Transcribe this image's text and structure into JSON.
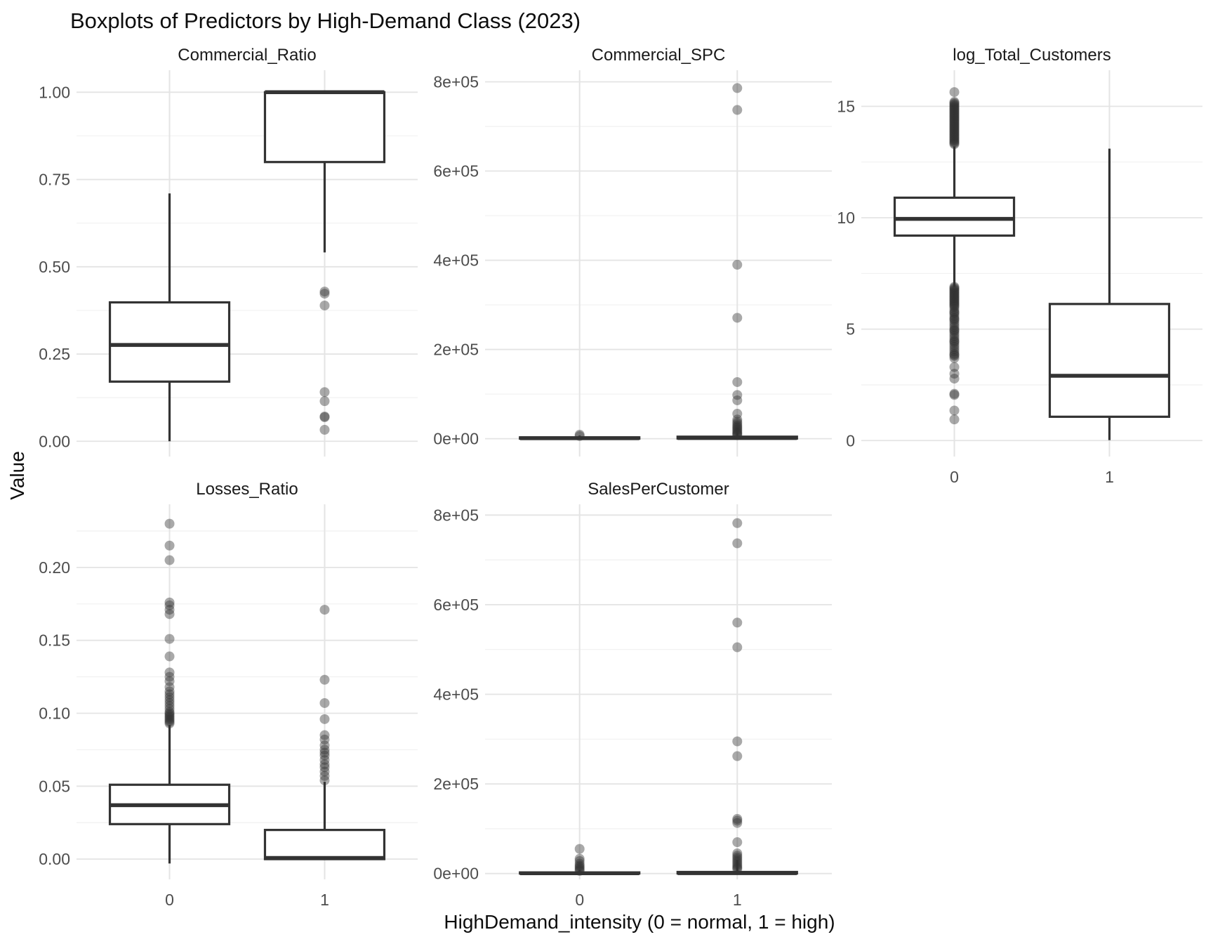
{
  "title": "Boxplots of Predictors by High-Demand Class (2023)",
  "x_axis_title": "HighDemand_intensity (0 = normal, 1 = high)",
  "y_axis_title": "Value",
  "colors": {
    "background": "#ffffff",
    "box_stroke": "#333333",
    "outlier": "#333333",
    "grid_major": "#e4e4e4",
    "grid_minor": "#f1f1f1",
    "tick_text": "#4d4d4d",
    "strip_text": "#1a1a1a"
  },
  "chart_data": {
    "type": "boxplot",
    "facet_layout": {
      "rows": 2,
      "cols": 3,
      "empty_cells": [
        [
          1,
          2
        ]
      ]
    },
    "x_categories": [
      "0",
      "1"
    ],
    "grid": "major+minor, no panel border, white background",
    "facets": [
      {
        "name": "Commercial_Ratio",
        "row": 0,
        "col": 0,
        "show_x_labels": false,
        "ylim": [
          -0.0437,
          1.063
        ],
        "major_step": 0.25,
        "yticks": [
          {
            "v": 1.0,
            "label": "1.00"
          },
          {
            "v": 0.75,
            "label": "0.75"
          },
          {
            "v": 0.5,
            "label": "0.50"
          },
          {
            "v": 0.25,
            "label": "0.25"
          },
          {
            "v": 0.0,
            "label": "0.00"
          }
        ],
        "groups": [
          {
            "category": "0",
            "whisker_low": 0.0,
            "q1": 0.171,
            "median": 0.276,
            "q3": 0.398,
            "whisker_high": 0.71,
            "outliers": []
          },
          {
            "category": "1",
            "whisker_low": 0.541,
            "q1": 0.8,
            "median": 1.0,
            "q3": 1.0,
            "whisker_high": 1.0,
            "outliers": [
              0.429,
              0.423,
              0.389,
              0.141,
              0.115,
              0.071,
              0.069,
              0.033
            ]
          }
        ]
      },
      {
        "name": "Commercial_SPC",
        "row": 0,
        "col": 1,
        "show_x_labels": false,
        "ylim": [
          -40000,
          826000
        ],
        "major_step": 200000,
        "yticks": [
          {
            "v": 800000,
            "label": "8e+05"
          },
          {
            "v": 600000,
            "label": "6e+05"
          },
          {
            "v": 400000,
            "label": "4e+05"
          },
          {
            "v": 200000,
            "label": "2e+05"
          },
          {
            "v": 0,
            "label": "0e+00"
          }
        ],
        "groups": [
          {
            "category": "0",
            "whisker_low": 0,
            "q1": 300,
            "median": 1200,
            "q3": 3000,
            "whisker_high": 7000,
            "outliers": [
              9000,
              6000
            ]
          },
          {
            "category": "1",
            "whisker_low": 0,
            "q1": 500,
            "median": 1500,
            "q3": 4500,
            "whisker_high": 25000,
            "outliers": [
              786000,
              737000,
              390000,
              271000,
              127000,
              98000,
              86000,
              56000,
              43000,
              38000,
              34000,
              30000,
              27000,
              24000,
              21000,
              18000,
              15000,
              12000,
              10000,
              8000
            ]
          }
        ]
      },
      {
        "name": "log_Total_Customers",
        "row": 0,
        "col": 2,
        "show_x_labels": true,
        "ylim": [
          -0.716,
          16.62
        ],
        "major_step": 5,
        "yticks": [
          {
            "v": 15,
            "label": "15"
          },
          {
            "v": 10,
            "label": "10"
          },
          {
            "v": 5,
            "label": "5"
          },
          {
            "v": 0,
            "label": "0"
          }
        ],
        "groups": [
          {
            "category": "0",
            "whisker_low": 6.9,
            "q1": 9.2,
            "median": 9.95,
            "q3": 10.9,
            "whisker_high": 13.2,
            "outliers": [
              15.64,
              15.2,
              15.15,
              15.1,
              15.05,
              15.0,
              14.95,
              14.9,
              14.85,
              14.8,
              14.75,
              14.7,
              14.65,
              14.6,
              14.55,
              14.5,
              14.45,
              14.4,
              14.35,
              14.3,
              14.25,
              14.2,
              14.15,
              14.1,
              14.05,
              14.0,
              13.95,
              13.9,
              13.85,
              13.8,
              13.75,
              13.7,
              13.65,
              13.6,
              13.55,
              13.5,
              13.45,
              13.4,
              13.35,
              13.3,
              6.9,
              6.85,
              6.8,
              6.75,
              6.7,
              6.65,
              6.6,
              6.55,
              6.5,
              6.45,
              6.4,
              6.35,
              6.3,
              6.25,
              6.2,
              6.15,
              6.1,
              6.05,
              6.0,
              5.9,
              5.8,
              5.75,
              5.7,
              5.6,
              5.5,
              5.45,
              5.4,
              5.3,
              5.2,
              5.1,
              5.0,
              4.95,
              4.9,
              4.8,
              4.7,
              4.6,
              4.5,
              4.45,
              4.4,
              4.3,
              4.2,
              4.1,
              4.0,
              3.9,
              3.85,
              3.8,
              3.7,
              3.3,
              3.0,
              2.78,
              2.1,
              2.05,
              1.35,
              0.95
            ]
          },
          {
            "category": "1",
            "whisker_low": 0.02,
            "q1": 1.07,
            "median": 2.91,
            "q3": 6.13,
            "whisker_high": 13.1,
            "outliers": []
          }
        ]
      },
      {
        "name": "Losses_Ratio",
        "row": 1,
        "col": 0,
        "show_x_labels": true,
        "ylim": [
          -0.0139,
          0.2433
        ],
        "major_step": 0.05,
        "yticks": [
          {
            "v": 0.2,
            "label": "0.20"
          },
          {
            "v": 0.15,
            "label": "0.15"
          },
          {
            "v": 0.1,
            "label": "0.10"
          },
          {
            "v": 0.05,
            "label": "0.05"
          },
          {
            "v": 0.0,
            "label": "0.00"
          }
        ],
        "groups": [
          {
            "category": "0",
            "whisker_low": -0.003,
            "q1": 0.024,
            "median": 0.037,
            "q3": 0.051,
            "whisker_high": 0.092,
            "outliers": [
              0.23,
              0.215,
              0.205,
              0.176,
              0.174,
              0.171,
              0.168,
              0.151,
              0.139,
              0.128,
              0.125,
              0.122,
              0.118,
              0.115,
              0.113,
              0.111,
              0.109,
              0.107,
              0.105,
              0.103,
              0.101,
              0.1,
              0.099,
              0.098,
              0.097,
              0.096,
              0.095,
              0.094,
              0.093
            ]
          },
          {
            "category": "1",
            "whisker_low": 0.0,
            "q1": 0.0,
            "median": 0.0008,
            "q3": 0.02,
            "whisker_high": 0.053,
            "outliers": [
              0.171,
              0.123,
              0.107,
              0.096,
              0.085,
              0.082,
              0.078,
              0.075,
              0.073,
              0.071,
              0.068,
              0.065,
              0.063,
              0.06,
              0.057,
              0.054
            ]
          }
        ]
      },
      {
        "name": "SalesPerCustomer",
        "row": 1,
        "col": 1,
        "show_x_labels": true,
        "ylim": [
          -13000,
          824000
        ],
        "major_step": 200000,
        "yticks": [
          {
            "v": 800000,
            "label": "8e+05"
          },
          {
            "v": 600000,
            "label": "6e+05"
          },
          {
            "v": 400000,
            "label": "4e+05"
          },
          {
            "v": 200000,
            "label": "2e+05"
          },
          {
            "v": 0,
            "label": "0e+00"
          }
        ],
        "groups": [
          {
            "category": "0",
            "whisker_low": 0,
            "q1": 200,
            "median": 800,
            "q3": 2500,
            "whisker_high": 8000,
            "outliers": [
              55000,
              33000,
              28000,
              22000,
              18000,
              15000,
              12000,
              9000,
              6000
            ]
          },
          {
            "category": "1",
            "whisker_low": 0,
            "q1": 300,
            "median": 1000,
            "q3": 3500,
            "whisker_high": 30000,
            "outliers": [
              782000,
              737000,
              560000,
              505000,
              295000,
              262000,
              122000,
              118000,
              113000,
              70000,
              45000,
              40000,
              36000,
              32000,
              28000,
              24000,
              20000,
              16000,
              13000,
              10000
            ]
          }
        ]
      }
    ]
  }
}
